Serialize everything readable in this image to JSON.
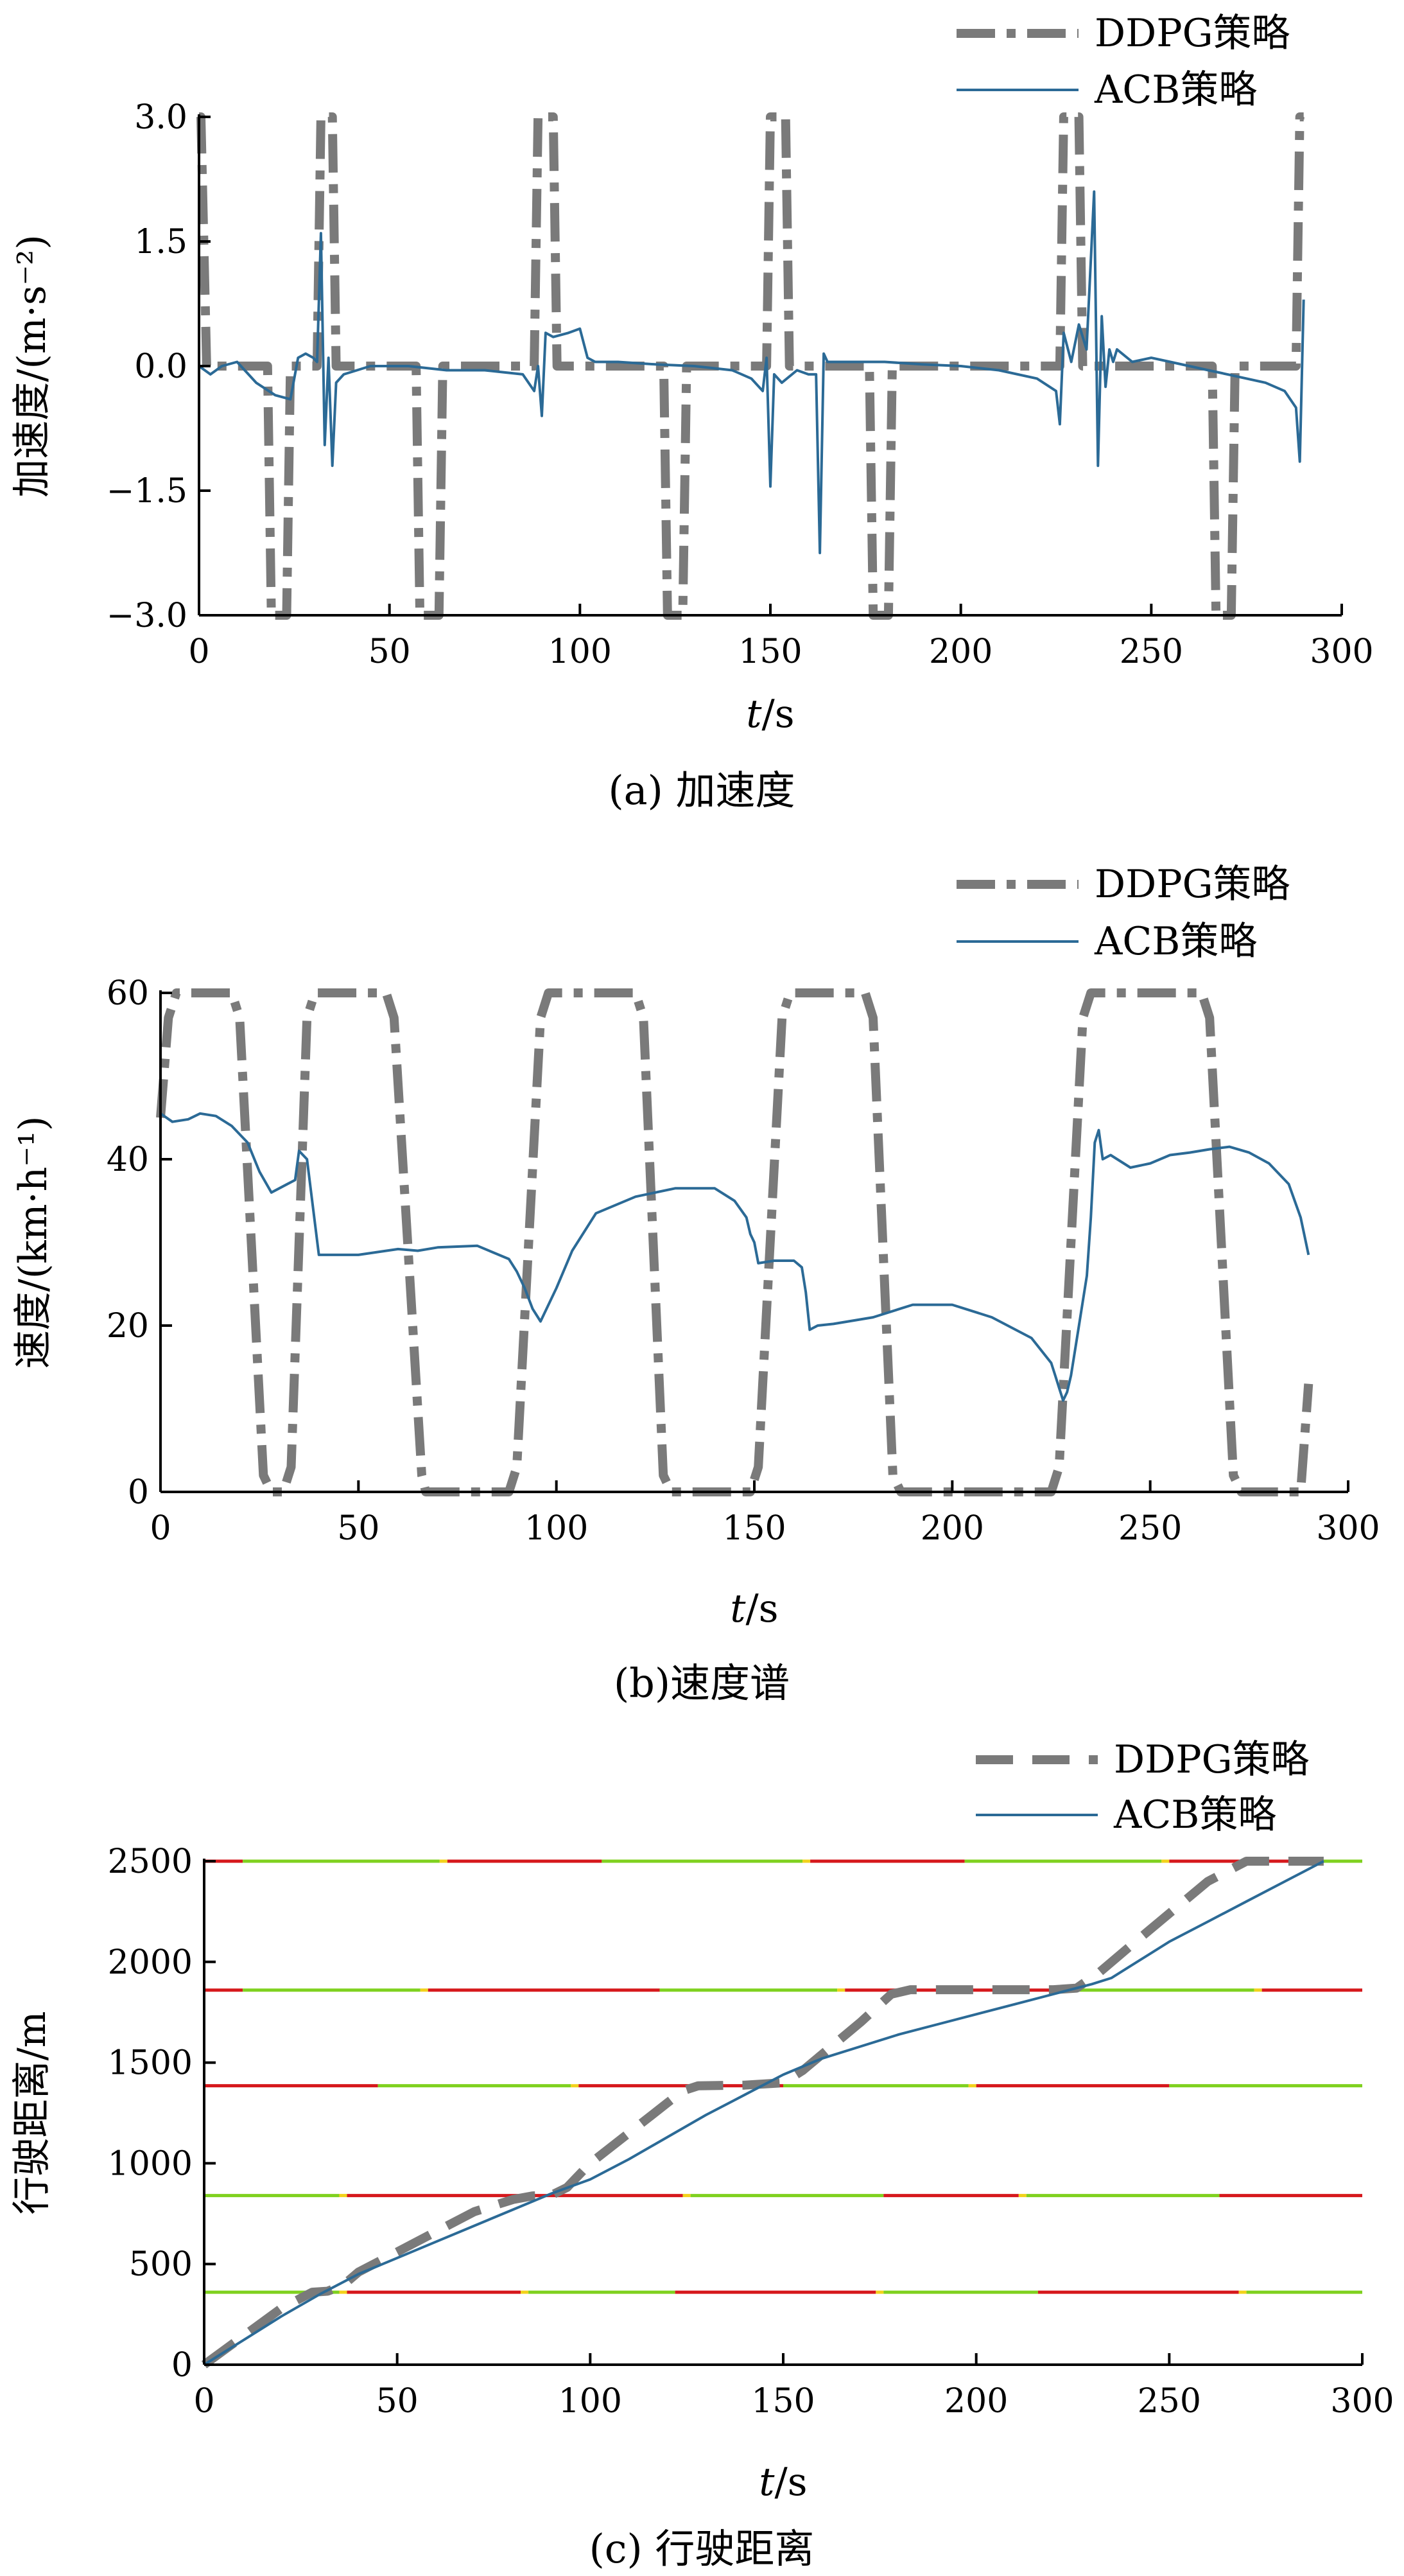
{
  "legend": {
    "ddpg": "DDPG策略",
    "acb": "ACB策略"
  },
  "colors": {
    "ddpg": "#7a7a7a",
    "acb": "#2b6a96",
    "signal_green": "#7fd11f",
    "signal_red": "#d6181c",
    "signal_yellow": "#f2d21c"
  },
  "chart_data": [
    {
      "type": "line",
      "caption": "(a) 加速度",
      "xlabel_italic": "t",
      "xlabel_unit": "/s",
      "ylabel": "加速度/(m·s⁻²)",
      "xlim": [
        0,
        300
      ],
      "ylim": [
        -3,
        3
      ],
      "xticks": [
        0,
        50,
        100,
        150,
        200,
        250,
        300
      ],
      "xtick_labels": [
        "0",
        "50",
        "100",
        "150",
        "200",
        "250",
        "300"
      ],
      "yticks": [
        -3,
        -1.5,
        0,
        1.5,
        3
      ],
      "ytick_labels": [
        "−3.0",
        "−1.5",
        "0.0",
        "1.5",
        "3.0"
      ],
      "series": [
        {
          "name": "DDPG策略",
          "style": "dashdot",
          "x": [
            0,
            0.5,
            2,
            3,
            18,
            19,
            23,
            24,
            31,
            32,
            35,
            36,
            57,
            58,
            63,
            64,
            88,
            89,
            93,
            94,
            122,
            123,
            127,
            128,
            149,
            150,
            154,
            155,
            176,
            177,
            181,
            182,
            226,
            227,
            231,
            232,
            266,
            267,
            271,
            272,
            288,
            289,
            290
          ],
          "y": [
            3,
            3,
            0,
            0,
            0,
            -3,
            -3,
            0,
            0,
            3,
            3,
            0,
            0,
            -3,
            -3,
            0,
            0,
            3,
            3,
            0,
            0,
            -3,
            -3,
            0,
            0,
            3,
            3,
            0,
            0,
            -3,
            -3,
            0,
            0,
            3,
            3,
            0,
            0,
            -3,
            -3,
            0,
            0,
            3,
            3
          ]
        },
        {
          "name": "ACB策略",
          "style": "solid",
          "x": [
            0,
            3,
            6,
            10,
            15,
            20,
            24,
            26,
            28,
            30,
            31,
            32,
            33,
            34,
            35,
            36,
            38,
            45,
            55,
            65,
            75,
            85,
            88,
            89,
            90,
            91,
            93,
            97,
            100,
            102,
            104,
            110,
            120,
            130,
            140,
            145,
            148,
            149,
            150,
            151,
            153,
            157,
            160,
            162,
            163,
            164,
            165,
            170,
            180,
            190,
            200,
            210,
            220,
            225,
            226,
            227,
            229,
            231,
            233,
            235,
            236,
            237,
            238,
            239,
            240,
            241,
            245,
            250,
            255,
            260,
            265,
            270,
            275,
            280,
            285,
            288,
            289,
            290
          ],
          "y": [
            0,
            -0.1,
            0,
            0.05,
            -0.2,
            -0.35,
            -0.4,
            0.1,
            0.15,
            0.1,
            0.05,
            1.6,
            -0.95,
            0.1,
            -1.2,
            -0.2,
            -0.1,
            0,
            0,
            -0.05,
            -0.05,
            -0.1,
            -0.3,
            0,
            -0.6,
            0.4,
            0.35,
            0.4,
            0.45,
            0.1,
            0.05,
            0.05,
            0.02,
            0,
            -0.05,
            -0.15,
            -0.3,
            0.1,
            -1.45,
            -0.1,
            -0.2,
            -0.05,
            -0.1,
            -0.1,
            -2.25,
            0.15,
            0.05,
            0.05,
            0.05,
            0.02,
            0,
            -0.05,
            -0.15,
            -0.3,
            -0.7,
            0.4,
            0.05,
            0.5,
            0.2,
            2.1,
            -1.2,
            0.6,
            -0.25,
            0.2,
            0.05,
            0.2,
            0.05,
            0.1,
            0.05,
            0,
            -0.05,
            -0.1,
            -0.15,
            -0.2,
            -0.3,
            -0.5,
            -1.15,
            0.8
          ]
        }
      ]
    },
    {
      "type": "line",
      "caption": "(b)速度谱",
      "xlabel_italic": "t",
      "xlabel_unit": "/s",
      "ylabel": "速度/(km·h⁻¹)",
      "xlim": [
        0,
        300
      ],
      "ylim": [
        0,
        60
      ],
      "xticks": [
        0,
        50,
        100,
        150,
        200,
        250,
        300
      ],
      "xtick_labels": [
        "0",
        "50",
        "100",
        "150",
        "200",
        "250",
        "300"
      ],
      "yticks": [
        0,
        20,
        40,
        60
      ],
      "ytick_labels": [
        "0",
        "20",
        "40",
        "60"
      ],
      "series": [
        {
          "name": "DDPG策略",
          "style": "dashdot",
          "x": [
            0,
            2,
            4,
            6,
            18,
            20,
            26,
            28,
            31,
            33,
            37,
            39,
            57,
            59,
            66,
            67,
            88,
            90,
            96,
            98,
            120,
            122,
            127,
            129,
            149,
            151,
            157,
            159,
            178,
            180,
            185,
            187,
            225,
            227,
            233,
            235,
            263,
            265,
            271,
            273,
            288,
            290
          ],
          "y": [
            45,
            57,
            60,
            60,
            60,
            57,
            2,
            0,
            0,
            3,
            57,
            60,
            60,
            57,
            2,
            0,
            0,
            3,
            57,
            60,
            60,
            57,
            2,
            0,
            0,
            3,
            57,
            60,
            60,
            57,
            2,
            0,
            0,
            3,
            57,
            60,
            60,
            57,
            2,
            0,
            0,
            13
          ]
        },
        {
          "name": "ACB策略",
          "style": "solid",
          "x": [
            0,
            3,
            7,
            10,
            14,
            18,
            22,
            25,
            28,
            30,
            32,
            34,
            35,
            37,
            40,
            50,
            60,
            65,
            70,
            80,
            88,
            90,
            92,
            94,
            96,
            100,
            104,
            110,
            120,
            130,
            140,
            145,
            148,
            149,
            150,
            151,
            155,
            160,
            162,
            163,
            164,
            166,
            170,
            180,
            190,
            200,
            210,
            220,
            225,
            226,
            227,
            228,
            229,
            230,
            232,
            234,
            235,
            236,
            237,
            238,
            240,
            245,
            250,
            255,
            260,
            265,
            270,
            275,
            280,
            285,
            288,
            290
          ],
          "y": [
            45.5,
            44.5,
            44.8,
            45.5,
            45.2,
            44,
            42,
            38.5,
            36,
            36.5,
            37,
            37.5,
            41,
            40,
            28.5,
            28.5,
            29.2,
            29,
            29.4,
            29.6,
            28,
            26.5,
            24.5,
            22,
            20.5,
            24.5,
            29,
            33.5,
            35.5,
            36.5,
            36.5,
            35,
            33,
            31,
            30,
            27.5,
            27.8,
            27.8,
            27,
            24,
            19.5,
            20,
            20.2,
            21,
            22.5,
            22.5,
            21,
            18.5,
            15.5,
            14,
            12.5,
            11,
            12,
            14,
            20,
            26,
            33,
            42,
            43.5,
            40,
            40.5,
            39,
            39.5,
            40.5,
            40.8,
            41.2,
            41.5,
            40.8,
            39.5,
            37,
            33,
            28.5
          ]
        }
      ]
    },
    {
      "type": "line",
      "caption": "(c) 行驶距离",
      "xlabel_italic": "t",
      "xlabel_unit": "/s",
      "ylabel": "行驶距离/m",
      "xlim": [
        0,
        300
      ],
      "ylim": [
        0,
        2500
      ],
      "xticks": [
        0,
        50,
        100,
        150,
        200,
        250,
        300
      ],
      "xtick_labels": [
        "0",
        "50",
        "100",
        "150",
        "200",
        "250",
        "300"
      ],
      "yticks": [
        0,
        500,
        1000,
        1500,
        2000,
        2500
      ],
      "ytick_labels": [
        "0",
        "500",
        "1000",
        "1500",
        "2000",
        "2500"
      ],
      "signals": [
        {
          "y": 360,
          "segments": [
            [
              0,
              35,
              "green"
            ],
            [
              35,
              37,
              "yellow"
            ],
            [
              37,
              82,
              "red"
            ],
            [
              82,
              84,
              "yellow"
            ],
            [
              84,
              122,
              "green"
            ],
            [
              122,
              174,
              "red"
            ],
            [
              174,
              176,
              "yellow"
            ],
            [
              176,
              216,
              "green"
            ],
            [
              216,
              268,
              "red"
            ],
            [
              268,
              270,
              "yellow"
            ],
            [
              270,
              300,
              "green"
            ]
          ]
        },
        {
          "y": 840,
          "segments": [
            [
              0,
              35,
              "green"
            ],
            [
              35,
              37,
              "yellow"
            ],
            [
              37,
              124,
              "red"
            ],
            [
              124,
              126,
              "yellow"
            ],
            [
              126,
              176,
              "green"
            ],
            [
              176,
              211,
              "red"
            ],
            [
              211,
              213,
              "yellow"
            ],
            [
              213,
              263,
              "green"
            ],
            [
              263,
              300,
              "red"
            ]
          ]
        },
        {
          "y": 1385,
          "segments": [
            [
              0,
              45,
              "red"
            ],
            [
              45,
              95,
              "green"
            ],
            [
              95,
              97,
              "yellow"
            ],
            [
              97,
              150,
              "red"
            ],
            [
              150,
              198,
              "green"
            ],
            [
              198,
              200,
              "yellow"
            ],
            [
              200,
              250,
              "red"
            ],
            [
              250,
              300,
              "green"
            ]
          ]
        },
        {
          "y": 1860,
          "segments": [
            [
              0,
              10,
              "red"
            ],
            [
              10,
              56,
              "green"
            ],
            [
              56,
              58,
              "yellow"
            ],
            [
              58,
              118,
              "red"
            ],
            [
              118,
              164,
              "green"
            ],
            [
              164,
              166,
              "yellow"
            ],
            [
              166,
              226,
              "red"
            ],
            [
              226,
              272,
              "green"
            ],
            [
              272,
              274,
              "yellow"
            ],
            [
              274,
              300,
              "red"
            ]
          ]
        },
        {
          "y": 2500,
          "segments": [
            [
              0,
              10,
              "red"
            ],
            [
              10,
              61,
              "green"
            ],
            [
              61,
              63,
              "yellow"
            ],
            [
              63,
              103,
              "red"
            ],
            [
              103,
              155,
              "green"
            ],
            [
              155,
              157,
              "yellow"
            ],
            [
              157,
              197,
              "red"
            ],
            [
              197,
              248,
              "green"
            ],
            [
              248,
              250,
              "yellow"
            ],
            [
              250,
              290,
              "red"
            ],
            [
              290,
              300,
              "green"
            ]
          ]
        }
      ],
      "series": [
        {
          "name": "DDPG策略",
          "style": "dashed",
          "x": [
            0,
            5,
            10,
            20,
            28,
            32,
            36,
            40,
            50,
            60,
            70,
            80,
            85,
            90,
            94,
            100,
            110,
            120,
            124,
            128,
            140,
            150,
            155,
            160,
            170,
            178,
            183,
            190,
            200,
            210,
            220,
            226,
            232,
            240,
            250,
            260,
            270,
            280,
            290
          ],
          "y": [
            0,
            70,
            140,
            280,
            360,
            365,
            395,
            460,
            560,
            660,
            760,
            820,
            838,
            842,
            880,
            1000,
            1150,
            1300,
            1360,
            1385,
            1388,
            1400,
            1460,
            1540,
            1700,
            1840,
            1862,
            1862,
            1862,
            1862,
            1862,
            1870,
            1950,
            2080,
            2240,
            2400,
            2500,
            2500,
            2500
          ]
        },
        {
          "name": "ACB策略",
          "style": "solid",
          "x": [
            0,
            10,
            20,
            30,
            40,
            50,
            60,
            70,
            80,
            90,
            100,
            110,
            120,
            130,
            140,
            150,
            160,
            170,
            180,
            190,
            200,
            210,
            220,
            230,
            235,
            240,
            250,
            260,
            270,
            280,
            290
          ],
          "y": [
            0,
            120,
            240,
            350,
            450,
            530,
            610,
            690,
            770,
            850,
            920,
            1020,
            1130,
            1240,
            1340,
            1440,
            1520,
            1580,
            1640,
            1690,
            1740,
            1790,
            1840,
            1890,
            1920,
            1980,
            2100,
            2200,
            2300,
            2400,
            2500
          ]
        }
      ]
    }
  ]
}
